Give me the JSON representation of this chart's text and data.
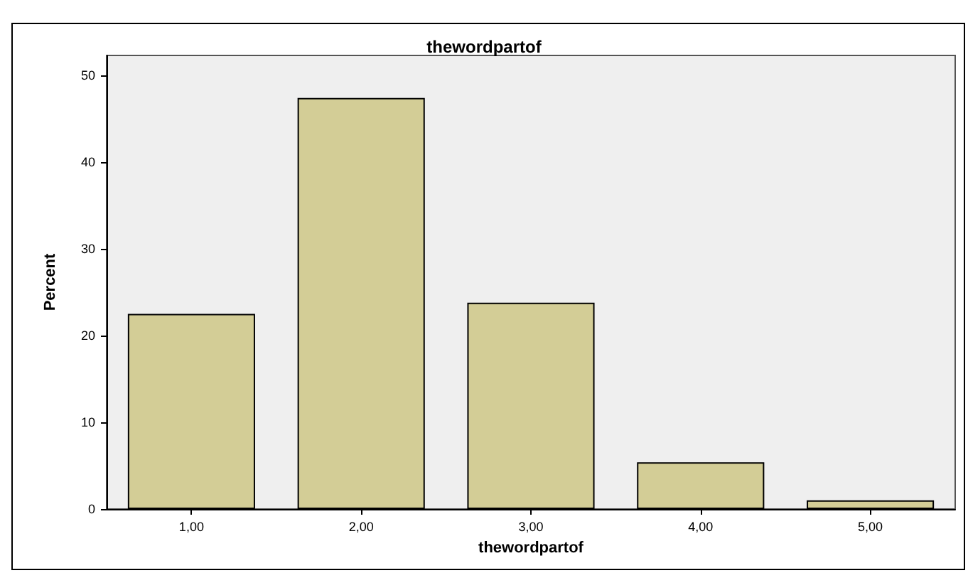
{
  "chart_data": {
    "type": "bar",
    "title": "thewordpartof",
    "xlabel": "thewordpartof",
    "ylabel": "Percent",
    "categories": [
      "1,00",
      "2,00",
      "3,00",
      "4,00",
      "5,00"
    ],
    "values": [
      22.5,
      47.4,
      23.8,
      5.4,
      1.0
    ],
    "color": "#d3cd96",
    "ylim": [
      0,
      52.3
    ],
    "yticks": [
      0,
      10,
      20,
      30,
      40,
      50
    ],
    "grid": false
  }
}
